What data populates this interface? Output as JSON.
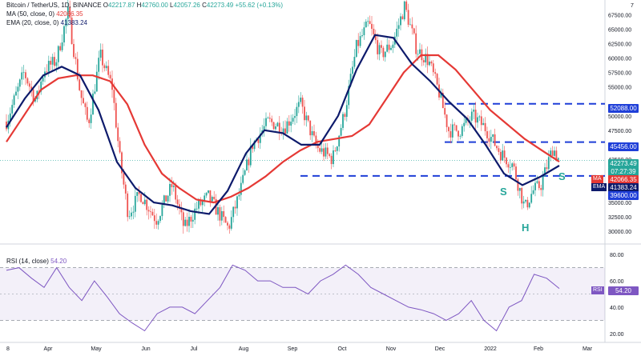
{
  "header": {
    "symbol": "Bitcoin / TetherUS, 1D, BINANCE",
    "open_label": "O",
    "open": "42217.87",
    "high_label": "H",
    "high": "42760.00",
    "low_label": "L",
    "low": "42057.26",
    "close_label": "C",
    "close": "42273.49",
    "change": "+55.62 (+0.13%)",
    "ma_label": "MA (50, close, 0)",
    "ma_value": "42066.35",
    "ema_label": "EMA (20, close, 0)",
    "ema_value": "41383.24",
    "rsi_label": "RSI (14, close)",
    "rsi_value": "54.20"
  },
  "price_axis": {
    "ticks": [
      "67500.00",
      "65000.00",
      "62500.00",
      "60000.00",
      "57500.00",
      "55000.00",
      "50000.00",
      "47500.00",
      "42500.00",
      "37500.00",
      "35000.00",
      "32500.00",
      "30000.00"
    ],
    "top_label": "7",
    "level_52088": "52088.00",
    "level_45456": "45456.00",
    "level_39600": "39600.00",
    "last_price": "42273.49",
    "countdown": "07:27:39",
    "ma_value": "42066.35",
    "ema_value": "41383.24",
    "ma_tag": "MA",
    "ema_tag": "EMA"
  },
  "rsi_axis": {
    "ticks": [
      "80.00",
      "60.00",
      "40.00",
      "20.00"
    ],
    "value": "54.20",
    "tag": "RSI"
  },
  "time_axis": {
    "labels": [
      "8",
      "Apr",
      "May",
      "Jun",
      "Jul",
      "Aug",
      "Sep",
      "Oct",
      "Nov",
      "Dec",
      "2022",
      "Feb",
      "Mar"
    ]
  },
  "annotations": {
    "left_shoulder": "S",
    "head": "H",
    "right_shoulder": "S"
  },
  "colors": {
    "up": "#26a69a",
    "down": "#ef5350",
    "ma": "#e53935",
    "ema": "#0d1a6b",
    "rsi": "#7e57c2",
    "level": "#1f3fd8"
  },
  "chart_data": {
    "type": "candlestick",
    "price_range": [
      28500,
      69500
    ],
    "resistance_levels": [
      52088,
      45456,
      39600
    ],
    "price_path_x": [
      8,
      30,
      45,
      55,
      70,
      85,
      100,
      110,
      125,
      140,
      150,
      160,
      175,
      195,
      215,
      230,
      245,
      260,
      285,
      300,
      315,
      335,
      355,
      375,
      395,
      415,
      430,
      445,
      460,
      475,
      490,
      505,
      520,
      535,
      548,
      560,
      575,
      590,
      605,
      625,
      640,
      655,
      665,
      675,
      690,
      698
    ],
    "price_path_y": [
      49000,
      57500,
      52500,
      58000,
      59500,
      68000,
      54000,
      48500,
      60500,
      55000,
      42000,
      33000,
      36500,
      32000,
      38000,
      30500,
      34000,
      36000,
      30500,
      37000,
      45000,
      49000,
      48000,
      52000,
      44500,
      42500,
      50500,
      62000,
      66000,
      60500,
      62500,
      69000,
      61500,
      59500,
      54000,
      47500,
      47500,
      50000,
      48000,
      43500,
      41500,
      34000,
      37000,
      38000,
      44500,
      42273
    ],
    "ma_path": [
      45500,
      50000,
      54500,
      56500,
      57000,
      57000,
      56000,
      52000,
      45000,
      40000,
      37500,
      35500,
      35000,
      36000,
      37500,
      39500,
      42000,
      44000,
      45500,
      46000,
      46500,
      48500,
      53000,
      57500,
      60500,
      60500,
      58000,
      54500,
      51000,
      48500,
      46000,
      44000,
      42066
    ],
    "ema_path": [
      48000,
      53000,
      57000,
      58500,
      57000,
      51000,
      42000,
      37500,
      35000,
      34500,
      33500,
      33000,
      37000,
      43500,
      47500,
      47000,
      45000,
      45000,
      50000,
      58000,
      64000,
      63500,
      59000,
      56000,
      52500,
      49500,
      45000,
      40000,
      38000,
      39500,
      41383
    ],
    "rsi_range": [
      15,
      85
    ],
    "rsi_band": [
      30,
      70
    ],
    "rsi_path": [
      68,
      70,
      62,
      55,
      70,
      55,
      45,
      60,
      48,
      35,
      28,
      22,
      35,
      40,
      40,
      35,
      45,
      55,
      72,
      68,
      60,
      60,
      55,
      55,
      50,
      60,
      65,
      72,
      65,
      55,
      50,
      45,
      40,
      38,
      35,
      30,
      35,
      45,
      30,
      22,
      40,
      45,
      65,
      62,
      54.2
    ]
  }
}
